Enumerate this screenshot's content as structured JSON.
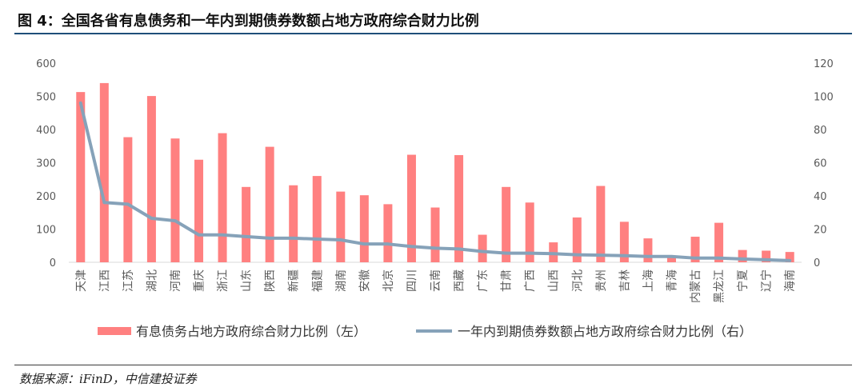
{
  "title": "图 4：全国各省有息债务和一年内到期债券数额占地方政府综合财力比例",
  "source": "数据来源：iFinD，中信建投证券",
  "chart_data": {
    "type": "bar",
    "categories": [
      "天津",
      "江西",
      "江苏",
      "湖北",
      "河南",
      "重庆",
      "浙江",
      "山东",
      "陕西",
      "新疆",
      "福建",
      "湖南",
      "安徽",
      "北京",
      "四川",
      "云南",
      "西藏",
      "广东",
      "甘肃",
      "广西",
      "山西",
      "河北",
      "贵州",
      "吉林",
      "上海",
      "青海",
      "内蒙古",
      "黑龙江",
      "宁夏",
      "辽宁",
      "海南"
    ],
    "series": [
      {
        "name": "有息债务占地方政府综合财力比例（左）",
        "type": "bar",
        "axis": "left",
        "color": "#ff8080",
        "values": [
          513,
          540,
          377,
          501,
          373,
          309,
          389,
          227,
          348,
          232,
          260,
          213,
          202,
          175,
          324,
          165,
          323,
          83,
          227,
          180,
          60,
          135,
          230,
          122,
          72,
          20,
          77,
          119,
          37,
          35,
          31
        ]
      },
      {
        "name": "一年内到期债券数额占地方政府综合财力比例（右）",
        "type": "line",
        "axis": "right",
        "color": "#86a2b9",
        "values": [
          96,
          36,
          35,
          26.5,
          25,
          16.5,
          16.5,
          15.5,
          14.5,
          14.5,
          14,
          13.5,
          11,
          11,
          9.5,
          8.5,
          8,
          6.5,
          5.5,
          5.5,
          5.2,
          4.5,
          4.3,
          4,
          3.5,
          3.5,
          2.5,
          2.5,
          2,
          1.5,
          1
        ]
      }
    ],
    "y_left": {
      "range": [
        0,
        600
      ],
      "ticks": [
        0,
        100,
        200,
        300,
        400,
        500,
        600
      ]
    },
    "y_right": {
      "range": [
        0,
        120
      ],
      "ticks": [
        0,
        20,
        40,
        60,
        80,
        100,
        120
      ]
    },
    "grid": false,
    "legend": "bottom"
  }
}
